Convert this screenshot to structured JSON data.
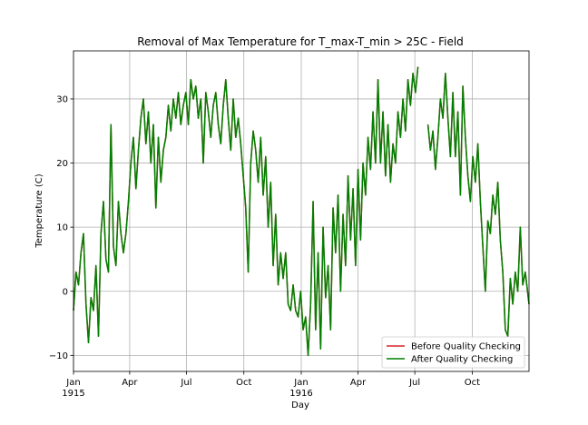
{
  "chart_data": {
    "type": "line",
    "title": "Removal of Max Temperature for T_max-T_min > 25C - Field",
    "xlabel": "Day",
    "ylabel": "Temperature (C)",
    "xlim": [
      "1915-01-01",
      "1916-12-31"
    ],
    "ylim": [
      -12.5,
      37.5
    ],
    "grid": true,
    "legend_position": "bottom-right",
    "x_ticks": [
      {
        "date": "1915-01-01",
        "label": "Jan",
        "sublabel": "1915"
      },
      {
        "date": "1915-04-01",
        "label": "Apr",
        "sublabel": ""
      },
      {
        "date": "1915-07-01",
        "label": "Jul",
        "sublabel": ""
      },
      {
        "date": "1915-10-01",
        "label": "Oct",
        "sublabel": ""
      },
      {
        "date": "1916-01-01",
        "label": "Jan",
        "sublabel": "1916"
      },
      {
        "date": "1916-04-01",
        "label": "Apr",
        "sublabel": ""
      },
      {
        "date": "1916-07-01",
        "label": "Jul",
        "sublabel": ""
      },
      {
        "date": "1916-10-01",
        "label": "Oct",
        "sublabel": ""
      }
    ],
    "y_ticks": [
      -10,
      0,
      10,
      20,
      30
    ],
    "series": [
      {
        "name": "Before Quality Checking",
        "color": "#d62728",
        "points": [
          [
            "1915-01-01",
            -3
          ],
          [
            "1915-01-05",
            3
          ],
          [
            "1915-01-09",
            1
          ],
          [
            "1915-01-13",
            6
          ],
          [
            "1915-01-17",
            9
          ],
          [
            "1915-01-21",
            -2
          ],
          [
            "1915-01-25",
            -8
          ],
          [
            "1915-01-29",
            -1
          ],
          [
            "1915-02-02",
            -3
          ],
          [
            "1915-02-06",
            4
          ],
          [
            "1915-02-10",
            -7
          ],
          [
            "1915-02-14",
            9
          ],
          [
            "1915-02-18",
            14
          ],
          [
            "1915-02-22",
            5
          ],
          [
            "1915-02-26",
            3
          ],
          [
            "1915-03-02",
            26
          ],
          [
            "1915-03-06",
            7
          ],
          [
            "1915-03-10",
            4
          ],
          [
            "1915-03-14",
            14
          ],
          [
            "1915-03-18",
            9
          ],
          [
            "1915-03-22",
            6
          ],
          [
            "1915-03-26",
            9
          ],
          [
            "1915-03-30",
            14
          ],
          [
            "1915-04-03",
            20
          ],
          [
            "1915-04-07",
            24
          ],
          [
            "1915-04-11",
            16
          ],
          [
            "1915-04-15",
            22
          ],
          [
            "1915-04-19",
            27
          ],
          [
            "1915-04-23",
            30
          ],
          [
            "1915-04-27",
            23
          ],
          [
            "1915-05-01",
            28
          ],
          [
            "1915-05-05",
            20
          ],
          [
            "1915-05-09",
            26
          ],
          [
            "1915-05-13",
            13
          ],
          [
            "1915-05-17",
            24
          ],
          [
            "1915-05-21",
            17
          ],
          [
            "1915-05-25",
            22
          ],
          [
            "1915-05-29",
            24
          ],
          [
            "1915-06-02",
            29
          ],
          [
            "1915-06-06",
            25
          ],
          [
            "1915-06-10",
            30
          ],
          [
            "1915-06-14",
            27
          ],
          [
            "1915-06-18",
            31
          ],
          [
            "1915-06-22",
            26
          ],
          [
            "1915-06-26",
            29
          ],
          [
            "1915-06-30",
            31
          ],
          [
            "1915-07-04",
            26
          ],
          [
            "1915-07-08",
            33
          ],
          [
            "1915-07-12",
            30
          ],
          [
            "1915-07-16",
            32
          ],
          [
            "1915-07-20",
            27
          ],
          [
            "1915-07-24",
            30
          ],
          [
            "1915-07-28",
            20
          ],
          [
            "1915-08-01",
            31
          ],
          [
            "1915-08-05",
            28
          ],
          [
            "1915-08-09",
            24
          ],
          [
            "1915-08-13",
            29
          ],
          [
            "1915-08-17",
            31
          ],
          [
            "1915-08-21",
            26
          ],
          [
            "1915-08-25",
            23
          ],
          [
            "1915-08-29",
            29
          ],
          [
            "1915-09-02",
            33
          ],
          [
            "1915-09-06",
            27
          ],
          [
            "1915-09-10",
            22
          ],
          [
            "1915-09-14",
            30
          ],
          [
            "1915-09-18",
            24
          ],
          [
            "1915-09-22",
            27
          ],
          [
            "1915-09-26",
            23
          ],
          [
            "1915-09-30",
            18
          ],
          [
            "1915-10-04",
            13
          ],
          [
            "1915-10-08",
            3
          ],
          [
            "1915-10-12",
            20
          ],
          [
            "1915-10-16",
            25
          ],
          [
            "1915-10-20",
            22
          ],
          [
            "1915-10-24",
            17
          ],
          [
            "1915-10-28",
            24
          ],
          [
            "1915-11-01",
            15
          ],
          [
            "1915-11-05",
            21
          ],
          [
            "1915-11-09",
            10
          ],
          [
            "1915-11-13",
            17
          ],
          [
            "1915-11-17",
            4
          ],
          [
            "1915-11-21",
            12
          ],
          [
            "1915-11-25",
            1
          ],
          [
            "1915-11-29",
            6
          ],
          [
            "1915-12-03",
            2
          ],
          [
            "1915-12-07",
            6
          ],
          [
            "1915-12-11",
            -2
          ],
          [
            "1915-12-15",
            -3
          ],
          [
            "1915-12-19",
            1
          ],
          [
            "1915-12-23",
            -3
          ],
          [
            "1915-12-27",
            -4
          ],
          [
            "1915-12-31",
            0
          ],
          [
            "1916-01-04",
            -6
          ],
          [
            "1916-01-08",
            -4
          ],
          [
            "1916-01-12",
            -10
          ],
          [
            "1916-01-16",
            -2
          ],
          [
            "1916-01-20",
            14
          ],
          [
            "1916-01-24",
            -6
          ],
          [
            "1916-01-28",
            6
          ],
          [
            "1916-02-01",
            -9
          ],
          [
            "1916-02-05",
            10
          ],
          [
            "1916-02-09",
            -1
          ],
          [
            "1916-02-13",
            4
          ],
          [
            "1916-02-17",
            -6
          ],
          [
            "1916-02-21",
            13
          ],
          [
            "1916-02-25",
            6
          ],
          [
            "1916-02-29",
            15
          ],
          [
            "1916-03-04",
            0
          ],
          [
            "1916-03-08",
            12
          ],
          [
            "1916-03-12",
            4
          ],
          [
            "1916-03-16",
            18
          ],
          [
            "1916-03-20",
            8
          ],
          [
            "1916-03-24",
            16
          ],
          [
            "1916-03-28",
            4
          ],
          [
            "1916-04-01",
            19
          ],
          [
            "1916-04-05",
            8
          ],
          [
            "1916-04-09",
            20
          ],
          [
            "1916-04-13",
            15
          ],
          [
            "1916-04-17",
            24
          ],
          [
            "1916-04-21",
            19
          ],
          [
            "1916-04-25",
            28
          ],
          [
            "1916-04-29",
            20
          ],
          [
            "1916-05-03",
            33
          ],
          [
            "1916-05-07",
            20
          ],
          [
            "1916-05-11",
            28
          ],
          [
            "1916-05-15",
            18
          ],
          [
            "1916-05-19",
            26
          ],
          [
            "1916-05-23",
            17
          ],
          [
            "1916-05-27",
            23
          ],
          [
            "1916-05-31",
            20
          ],
          [
            "1916-06-04",
            28
          ],
          [
            "1916-06-08",
            24
          ],
          [
            "1916-06-12",
            30
          ],
          [
            "1916-06-16",
            25
          ],
          [
            "1916-06-20",
            33
          ],
          [
            "1916-06-24",
            29
          ],
          [
            "1916-06-28",
            34
          ],
          [
            "1916-07-02",
            31
          ],
          [
            "1916-07-06",
            35
          ],
          [
            "1916-07-10",
            null
          ],
          [
            "1916-07-14",
            null
          ],
          [
            "1916-07-18",
            null
          ],
          [
            "1916-07-22",
            26
          ],
          [
            "1916-07-26",
            22
          ],
          [
            "1916-07-30",
            25
          ],
          [
            "1916-08-03",
            19
          ],
          [
            "1916-08-07",
            24
          ],
          [
            "1916-08-11",
            30
          ],
          [
            "1916-08-15",
            27
          ],
          [
            "1916-08-19",
            34
          ],
          [
            "1916-08-23",
            27
          ],
          [
            "1916-08-27",
            21
          ],
          [
            "1916-08-31",
            31
          ],
          [
            "1916-09-04",
            21
          ],
          [
            "1916-09-08",
            28
          ],
          [
            "1916-09-12",
            15
          ],
          [
            "1916-09-16",
            32
          ],
          [
            "1916-09-20",
            24
          ],
          [
            "1916-09-24",
            18
          ],
          [
            "1916-09-28",
            14
          ],
          [
            "1916-10-02",
            21
          ],
          [
            "1916-10-06",
            17
          ],
          [
            "1916-10-10",
            23
          ],
          [
            "1916-10-14",
            14
          ],
          [
            "1916-10-18",
            7
          ],
          [
            "1916-10-22",
            0
          ],
          [
            "1916-10-26",
            11
          ],
          [
            "1916-10-30",
            9
          ],
          [
            "1916-11-03",
            15
          ],
          [
            "1916-11-07",
            12
          ],
          [
            "1916-11-11",
            17
          ],
          [
            "1916-11-15",
            8
          ],
          [
            "1916-11-19",
            3
          ],
          [
            "1916-11-23",
            -6
          ],
          [
            "1916-11-27",
            -7
          ],
          [
            "1916-12-01",
            2
          ],
          [
            "1916-12-05",
            -2
          ],
          [
            "1916-12-09",
            3
          ],
          [
            "1916-12-13",
            0
          ],
          [
            "1916-12-17",
            10
          ],
          [
            "1916-12-21",
            1
          ],
          [
            "1916-12-25",
            3
          ],
          [
            "1916-12-31",
            -2
          ]
        ]
      },
      {
        "name": "After Quality Checking",
        "color": "#008000",
        "same_as": "Before Quality Checking"
      }
    ]
  }
}
